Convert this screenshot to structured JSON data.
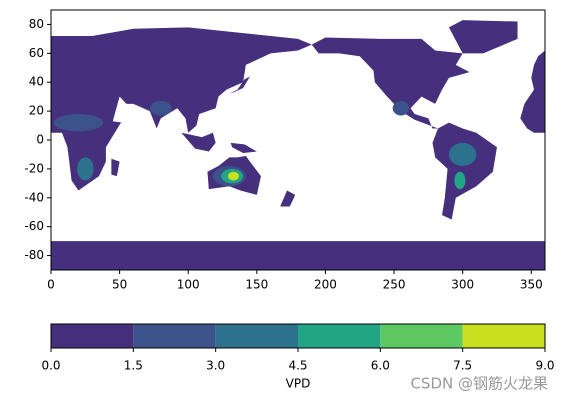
{
  "chart_data": {
    "type": "map",
    "xlim": [
      0,
      360
    ],
    "ylim": [
      -90,
      90
    ],
    "xticks": [
      0,
      50,
      100,
      150,
      200,
      250,
      300,
      350
    ],
    "yticks": [
      -80,
      -60,
      -40,
      -20,
      0,
      20,
      40,
      60,
      80
    ],
    "colorbar": {
      "label": "VPD",
      "ticks": [
        {
          "value": 0,
          "label": "0.0"
        },
        1.5,
        {
          "value": 3,
          "label": "3.0"
        },
        4.5,
        {
          "value": 6,
          "label": "6.0"
        },
        7.5,
        {
          "value": 9,
          "label": "9.0"
        }
      ],
      "colors": [
        "#46307e",
        "#3b528b",
        "#2c728e",
        "#21a585",
        "#5ec962",
        "#c8e020"
      ]
    }
  },
  "watermark": "CSDN @钢筋火龙果"
}
